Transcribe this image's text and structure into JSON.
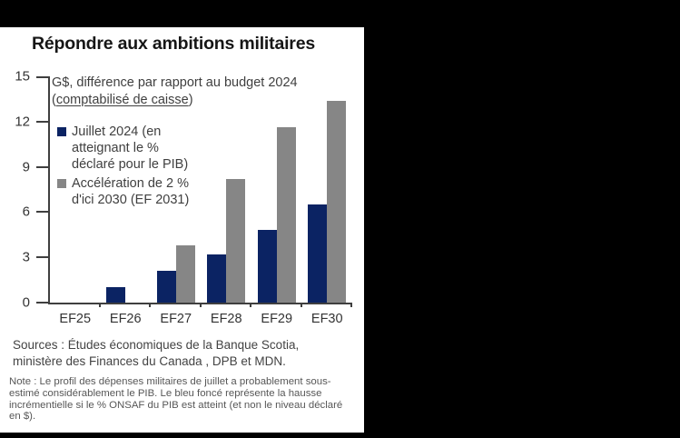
{
  "chart": {
    "title": "Répondre aux ambitions militaires",
    "subtitle_line1": "G$, différence par rapport au budget 2024",
    "subtitle_paren_open": "(",
    "subtitle_underlined": "comptabilisé de caisse",
    "subtitle_paren_close": ")",
    "sources": "Sources : Études économiques de la Banque Scotia,\nministère des Finances du Canada , DPB et MDN.",
    "note": "Note : Le profil des dépenses militaires de juillet a probablement sous-\nestimé considérablement le PIB. Le bleu foncé représente la hausse\nincrémentielle si le % ONSAF du PIB est atteint (et non le niveau déclaré\nen $)."
  },
  "colors": {
    "navy": "#0b2363",
    "gray": "#868686",
    "axis": "#3f3f3f",
    "card_background": "#ffffff",
    "page_background": "#000000"
  },
  "chart_data": {
    "type": "bar",
    "title": "Répondre aux ambitions militaires",
    "subtitle": "G$, différence par rapport au budget 2024 (comptabilisé de caisse)",
    "categories": [
      "EF25",
      "EF26",
      "EF27",
      "EF28",
      "EF29",
      "EF30"
    ],
    "series": [
      {
        "name": "Juillet 2024 (en atteignant le % déclaré pour le PIB)",
        "color": "#0b2363",
        "values": [
          0,
          1.0,
          2.1,
          3.2,
          4.8,
          6.5
        ]
      },
      {
        "name": "Accélération de 2 % d'ici 2030 (EF 2031)",
        "color": "#868686",
        "values": [
          0,
          0,
          3.8,
          8.2,
          11.6,
          13.4
        ]
      }
    ],
    "legend_labels": [
      "Juillet 2024 (en\natteignant le %\ndéclaré pour le PIB)",
      "Accélération de 2 %\nd'ici 2030 (EF 2031)"
    ],
    "yticks": [
      0,
      3,
      6,
      9,
      12,
      15
    ],
    "ylim": [
      0,
      15
    ],
    "xlabel": "",
    "ylabel": "",
    "grid": false,
    "legend_position": "upper-left-inside"
  }
}
